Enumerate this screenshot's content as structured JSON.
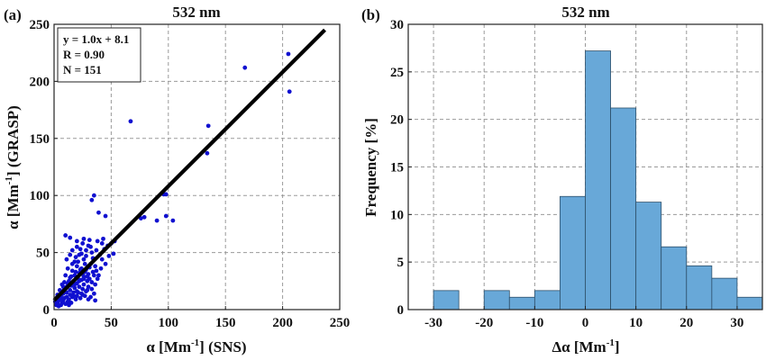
{
  "chart_data": [
    {
      "type": "scatter",
      "panel_label": "(a)",
      "title": "532 nm",
      "xlabel": "α [Mm⁻¹] (SNS)",
      "ylabel": "α [Mm⁻¹] (GRASP)",
      "xlim": [
        0,
        250
      ],
      "ylim": [
        0,
        250
      ],
      "xticks": [
        0,
        50,
        100,
        150,
        200,
        250
      ],
      "yticks": [
        0,
        50,
        100,
        150,
        200,
        250
      ],
      "grid": true,
      "fit_line": {
        "slope": 1.0,
        "intercept": 8.1,
        "x_range": [
          0,
          237
        ]
      },
      "stats": [
        "y = 1.0x + 8.1",
        "R = 0.90",
        "N = 151"
      ],
      "marker_color": "#1010d0",
      "line_color": "#000000",
      "points": [
        [
          205,
          224
        ],
        [
          167,
          212
        ],
        [
          206,
          191
        ],
        [
          67,
          165
        ],
        [
          135,
          161
        ],
        [
          134,
          137
        ],
        [
          98,
          101
        ],
        [
          96,
          101
        ],
        [
          35,
          100
        ],
        [
          33,
          96
        ],
        [
          39,
          85
        ],
        [
          45,
          82
        ],
        [
          79,
          81
        ],
        [
          76,
          80
        ],
        [
          90,
          78
        ],
        [
          98,
          82
        ],
        [
          104,
          78
        ],
        [
          38,
          60
        ],
        [
          43,
          62
        ],
        [
          50,
          58
        ],
        [
          53,
          60
        ],
        [
          10,
          65
        ],
        [
          14,
          63
        ],
        [
          25,
          58
        ],
        [
          30,
          56
        ],
        [
          20,
          55
        ],
        [
          28,
          52
        ],
        [
          22,
          48
        ],
        [
          34,
          45
        ],
        [
          26,
          44
        ],
        [
          18,
          42
        ],
        [
          32,
          40
        ],
        [
          20,
          38
        ],
        [
          24,
          36
        ],
        [
          28,
          35
        ],
        [
          16,
          34
        ],
        [
          22,
          32
        ],
        [
          30,
          31
        ],
        [
          35,
          30
        ],
        [
          18,
          30
        ],
        [
          26,
          29
        ],
        [
          14,
          28
        ],
        [
          21,
          27
        ],
        [
          38,
          27
        ],
        [
          24,
          26
        ],
        [
          29,
          25
        ],
        [
          17,
          25
        ],
        [
          33,
          24
        ],
        [
          12,
          23
        ],
        [
          20,
          23
        ],
        [
          26,
          22
        ],
        [
          36,
          22
        ],
        [
          15,
          21
        ],
        [
          22,
          20
        ],
        [
          30,
          20
        ],
        [
          18,
          19
        ],
        [
          9,
          18
        ],
        [
          25,
          18
        ],
        [
          33,
          18
        ],
        [
          14,
          17
        ],
        [
          20,
          16
        ],
        [
          28,
          16
        ],
        [
          11,
          15
        ],
        [
          17,
          15
        ],
        [
          24,
          14
        ],
        [
          35,
          14
        ],
        [
          8,
          14
        ],
        [
          14,
          13
        ],
        [
          20,
          12
        ],
        [
          27,
          12
        ],
        [
          6,
          12
        ],
        [
          11,
          11
        ],
        [
          16,
          11
        ],
        [
          32,
          11
        ],
        [
          5,
          10
        ],
        [
          9,
          10
        ],
        [
          13,
          9
        ],
        [
          19,
          9
        ],
        [
          4,
          8
        ],
        [
          8,
          8
        ],
        [
          12,
          7
        ],
        [
          36,
          8
        ],
        [
          3,
          6
        ],
        [
          7,
          6
        ],
        [
          15,
          6
        ],
        [
          10,
          5
        ],
        [
          2,
          4
        ],
        [
          6,
          4
        ],
        [
          13,
          4
        ],
        [
          4,
          3
        ],
        [
          30,
          9
        ],
        [
          23,
          10
        ],
        [
          40,
          48
        ],
        [
          42,
          44
        ],
        [
          27,
          40
        ],
        [
          31,
          37
        ],
        [
          36,
          38
        ],
        [
          19,
          46
        ],
        [
          23,
          53
        ],
        [
          33,
          50
        ],
        [
          12,
          36
        ],
        [
          10,
          30
        ],
        [
          7,
          22
        ],
        [
          5,
          17
        ],
        [
          3,
          13
        ],
        [
          2,
          10
        ],
        [
          1,
          7
        ],
        [
          16,
          40
        ],
        [
          28,
          47
        ],
        [
          24,
          49
        ],
        [
          21,
          42
        ],
        [
          34,
          33
        ],
        [
          37,
          34
        ],
        [
          29,
          29
        ],
        [
          25,
          31
        ],
        [
          13,
          25
        ],
        [
          8,
          20
        ],
        [
          6,
          16
        ],
        [
          18,
          22
        ],
        [
          22,
          25
        ],
        [
          26,
          27
        ],
        [
          31,
          27
        ],
        [
          39,
          30
        ],
        [
          41,
          36
        ],
        [
          45,
          40
        ],
        [
          48,
          47
        ],
        [
          15,
          29
        ],
        [
          11,
          20
        ],
        [
          9,
          24
        ],
        [
          7,
          9
        ],
        [
          17,
          12
        ],
        [
          21,
          15
        ],
        [
          25,
          13
        ],
        [
          29,
          17
        ],
        [
          19,
          33
        ],
        [
          23,
          35
        ],
        [
          27,
          33
        ],
        [
          14,
          48
        ],
        [
          32,
          55
        ],
        [
          37,
          52
        ],
        [
          47,
          56
        ],
        [
          52,
          49
        ],
        [
          44,
          53
        ],
        [
          20,
          60
        ],
        [
          16,
          52
        ],
        [
          11,
          44
        ],
        [
          26,
          62
        ],
        [
          31,
          61
        ],
        [
          42,
          58
        ]
      ]
    },
    {
      "type": "bar",
      "subtype": "histogram",
      "panel_label": "(b)",
      "title": "532 nm",
      "xlabel": "Δα [Mm⁻¹]",
      "ylabel": "Frequency [%]",
      "xlim": [
        -35,
        35
      ],
      "ylim": [
        0,
        30
      ],
      "xticks": [
        -30,
        -20,
        -10,
        0,
        10,
        20,
        30
      ],
      "yticks": [
        0,
        5,
        10,
        15,
        20,
        25,
        30
      ],
      "grid": true,
      "bar_color": "#68a8d8",
      "bin_edges": [
        -35,
        -30,
        -25,
        -20,
        -15,
        -10,
        -5,
        0,
        5,
        10,
        15,
        20,
        25,
        30,
        35
      ],
      "values": [
        0,
        2.0,
        0,
        2.0,
        1.3,
        2.0,
        11.9,
        27.2,
        21.2,
        11.3,
        6.6,
        4.6,
        3.3,
        1.3
      ]
    }
  ]
}
